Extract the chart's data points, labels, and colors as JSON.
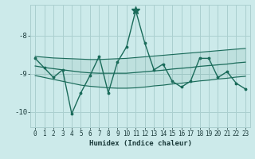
{
  "xlabel": "Humidex (Indice chaleur)",
  "bg_color": "#cceaea",
  "line_color": "#1a6b5a",
  "grid_color": "#aacfcf",
  "x_data": [
    0,
    1,
    2,
    3,
    4,
    5,
    6,
    7,
    8,
    9,
    10,
    11,
    12,
    13,
    14,
    15,
    16,
    17,
    18,
    19,
    20,
    21,
    22,
    23
  ],
  "main_y": [
    -8.6,
    -8.85,
    -9.1,
    -8.9,
    -10.05,
    -9.5,
    -9.05,
    -8.55,
    -9.5,
    -8.7,
    -8.3,
    -7.35,
    -8.2,
    -8.9,
    -8.75,
    -9.2,
    -9.35,
    -9.2,
    -8.6,
    -8.6,
    -9.1,
    -8.95,
    -9.25,
    -9.4
  ],
  "upper_y": [
    -8.55,
    -8.57,
    -8.59,
    -8.6,
    -8.61,
    -8.62,
    -8.63,
    -8.63,
    -8.62,
    -8.61,
    -8.6,
    -8.58,
    -8.56,
    -8.54,
    -8.52,
    -8.5,
    -8.48,
    -8.46,
    -8.44,
    -8.42,
    -8.4,
    -8.38,
    -8.36,
    -8.34
  ],
  "lower_y": [
    -9.05,
    -9.1,
    -9.15,
    -9.2,
    -9.25,
    -9.3,
    -9.33,
    -9.35,
    -9.37,
    -9.38,
    -9.38,
    -9.37,
    -9.35,
    -9.32,
    -9.3,
    -9.27,
    -9.25,
    -9.22,
    -9.19,
    -9.17,
    -9.14,
    -9.12,
    -9.09,
    -9.07
  ],
  "mid_y": [
    -8.8,
    -8.84,
    -8.87,
    -8.9,
    -8.93,
    -8.96,
    -8.98,
    -8.99,
    -8.99,
    -8.99,
    -8.99,
    -8.97,
    -8.95,
    -8.93,
    -8.91,
    -8.88,
    -8.86,
    -8.84,
    -8.81,
    -8.79,
    -8.77,
    -8.75,
    -8.72,
    -8.7
  ],
  "ylim": [
    -10.4,
    -7.2
  ],
  "xlim": [
    -0.5,
    23.5
  ],
  "yticks": [
    -10,
    -9,
    -8
  ],
  "xticks": [
    0,
    1,
    2,
    3,
    4,
    5,
    6,
    7,
    8,
    9,
    10,
    11,
    12,
    13,
    14,
    15,
    16,
    17,
    18,
    19,
    20,
    21,
    22,
    23
  ],
  "peak_x": 11,
  "peak_y": -7.35
}
